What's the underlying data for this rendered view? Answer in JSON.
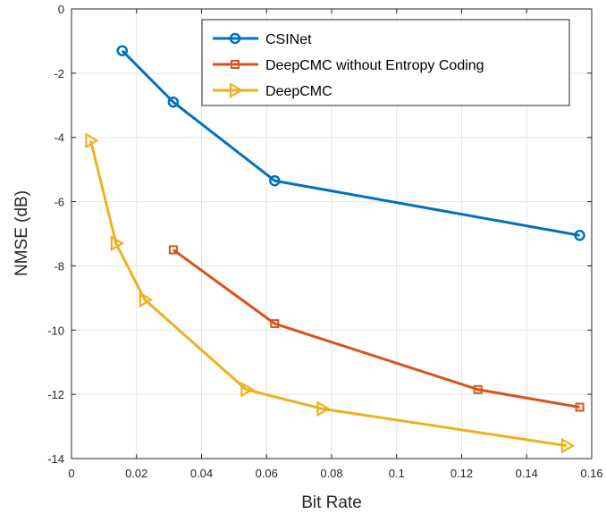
{
  "chart_data": {
    "type": "line",
    "xlabel": "Bit Rate",
    "ylabel": "NMSE (dB)",
    "xlim": [
      0,
      0.16
    ],
    "ylim": [
      -14,
      0
    ],
    "xticks": [
      "0",
      "0.02",
      "0.04",
      "0.06",
      "0.08",
      "0.1",
      "0.12",
      "0.14",
      "0.16"
    ],
    "yticks": [
      "0",
      "-2",
      "-4",
      "-6",
      "-8",
      "-10",
      "-12",
      "-14"
    ],
    "grid": true,
    "legend_position": "top-right",
    "series": [
      {
        "name": "CSINet",
        "color": "#0072BD",
        "marker": "circle",
        "x": [
          0.0156,
          0.0313,
          0.0625,
          0.1563
        ],
        "y": [
          -1.3,
          -2.9,
          -5.35,
          -7.05
        ]
      },
      {
        "name": "DeepCMC without Entropy Coding",
        "color": "#D95319",
        "marker": "square",
        "x": [
          0.0313,
          0.0625,
          0.125,
          0.1563
        ],
        "y": [
          -7.5,
          -9.8,
          -11.85,
          -12.4
        ]
      },
      {
        "name": "DeepCMC",
        "color": "#EDB120",
        "marker": "triangle-right",
        "x": [
          0.0059,
          0.0137,
          0.0225,
          0.0537,
          0.0771,
          0.1523
        ],
        "y": [
          -4.1,
          -7.3,
          -9.05,
          -11.85,
          -12.45,
          -13.6
        ]
      }
    ]
  }
}
